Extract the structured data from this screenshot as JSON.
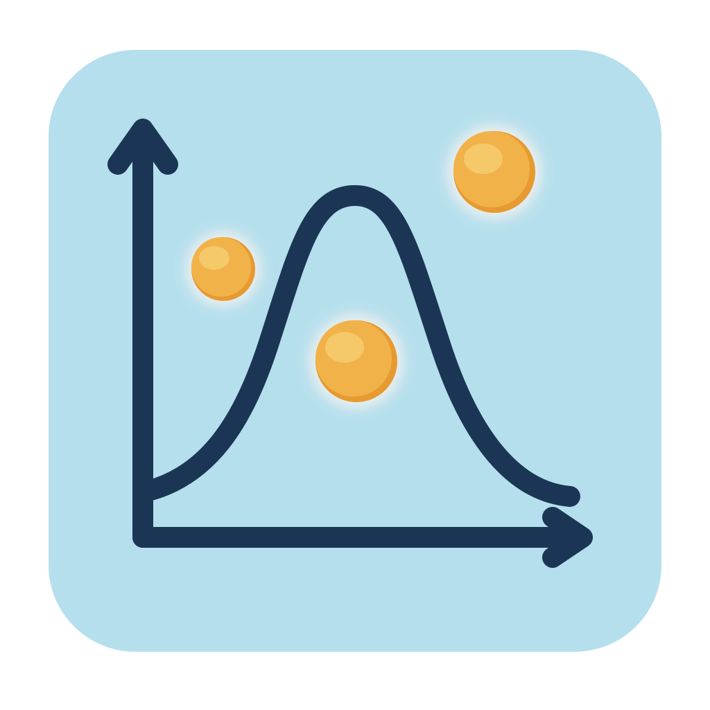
{
  "icon": {
    "name": "bell-curve-chart-app-icon",
    "tile_color": "#b6dfed",
    "stroke_color": "#1b3655",
    "dot_color": "#f2b24a",
    "dot_shadow_color": "#e79a30",
    "dot_highlight_color": "#f6cd70",
    "glow_color": "#f2f2ef"
  },
  "elements": {
    "y_axis": "y-axis-arrow-icon",
    "x_axis": "x-axis-arrow-icon",
    "curve": "bell-curve-icon",
    "dots": [
      "dot-small-left-icon",
      "dot-center-icon",
      "dot-top-right-icon"
    ]
  }
}
